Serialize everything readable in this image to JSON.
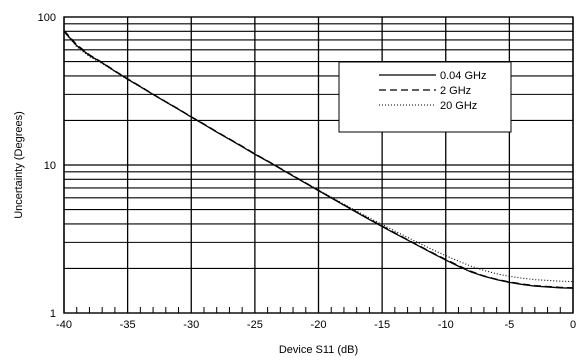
{
  "chart_data": {
    "type": "line",
    "title": "",
    "xlabel": "Device S11 (dB)",
    "ylabel": "Uncertainty (Degrees)",
    "xlim": [
      -40,
      0
    ],
    "ylim": [
      1,
      100
    ],
    "yscale": "log",
    "grid": true,
    "legend_position": "top-right",
    "x_ticks": [
      -40,
      -35,
      -30,
      -25,
      -20,
      -15,
      -10,
      -5,
      0
    ],
    "x_tick_labels": [
      "-40",
      "-35",
      "-30",
      "-25",
      "-20",
      "-15",
      "-10",
      "-5",
      "0"
    ],
    "y_ticks": [
      1,
      10,
      100
    ],
    "y_tick_labels": [
      "1",
      "10",
      "100"
    ],
    "series": [
      {
        "name": "0.04 GHz",
        "style": "solid",
        "x": [
          -40,
          -39,
          -38,
          -37,
          -36,
          -35,
          -34,
          -33,
          -32,
          -31,
          -30,
          -29,
          -28,
          -27,
          -26,
          -25,
          -24,
          -23,
          -22,
          -21,
          -20,
          -19,
          -18,
          -17,
          -16,
          -15,
          -14,
          -13,
          -12,
          -11,
          -10,
          -9,
          -8,
          -7,
          -6,
          -5,
          -4,
          -3,
          -2,
          -1,
          0
        ],
        "y": [
          80,
          64,
          55,
          49,
          43,
          38,
          33.8,
          30,
          26.7,
          23.8,
          21.1,
          18.8,
          16.7,
          14.9,
          13.3,
          11.8,
          10.6,
          9.45,
          8.42,
          7.52,
          6.7,
          5.99,
          5.35,
          4.78,
          4.28,
          3.84,
          3.45,
          3.11,
          2.8,
          2.52,
          2.28,
          2.07,
          1.89,
          1.77,
          1.68,
          1.61,
          1.56,
          1.52,
          1.5,
          1.48,
          1.47
        ]
      },
      {
        "name": "2 GHz",
        "style": "dashed",
        "x": [
          -40,
          -39,
          -38,
          -37,
          -36,
          -35,
          -34,
          -33,
          -32,
          -31,
          -30,
          -29,
          -28,
          -27,
          -26,
          -25,
          -24,
          -23,
          -22,
          -21,
          -20,
          -19,
          -18,
          -17,
          -16,
          -15,
          -14,
          -13,
          -12,
          -11,
          -10,
          -9,
          -8,
          -7,
          -6,
          -5,
          -4,
          -3,
          -2,
          -1,
          0
        ],
        "y": [
          81,
          65,
          55.5,
          49.3,
          43.3,
          38.2,
          34,
          30.1,
          26.8,
          23.9,
          21.2,
          18.9,
          16.8,
          15,
          13.4,
          11.9,
          10.65,
          9.5,
          8.47,
          7.56,
          6.74,
          6.02,
          5.38,
          4.81,
          4.31,
          3.87,
          3.48,
          3.13,
          2.82,
          2.54,
          2.3,
          2.09,
          1.91,
          1.78,
          1.69,
          1.62,
          1.57,
          1.53,
          1.51,
          1.49,
          1.48
        ]
      },
      {
        "name": "20 GHz",
        "style": "dotted",
        "x": [
          -40,
          -39,
          -38,
          -37,
          -36,
          -35,
          -34,
          -33,
          -32,
          -31,
          -30,
          -29,
          -28,
          -27,
          -26,
          -25,
          -24,
          -23,
          -22,
          -21,
          -20,
          -19,
          -18,
          -17,
          -16,
          -15,
          -14,
          -13,
          -12,
          -11,
          -10,
          -9,
          -8,
          -7,
          -6,
          -5,
          -4,
          -3,
          -2,
          -1,
          0
        ],
        "y": [
          79,
          63,
          54,
          48.5,
          42.8,
          37.8,
          33.6,
          29.9,
          26.6,
          23.7,
          21.1,
          18.8,
          16.7,
          14.9,
          13.3,
          11.85,
          10.6,
          9.48,
          8.47,
          7.58,
          6.78,
          6.07,
          5.44,
          4.88,
          4.39,
          3.96,
          3.58,
          3.24,
          2.94,
          2.67,
          2.44,
          2.24,
          2.07,
          1.94,
          1.84,
          1.77,
          1.72,
          1.68,
          1.66,
          1.64,
          1.63
        ]
      }
    ]
  }
}
